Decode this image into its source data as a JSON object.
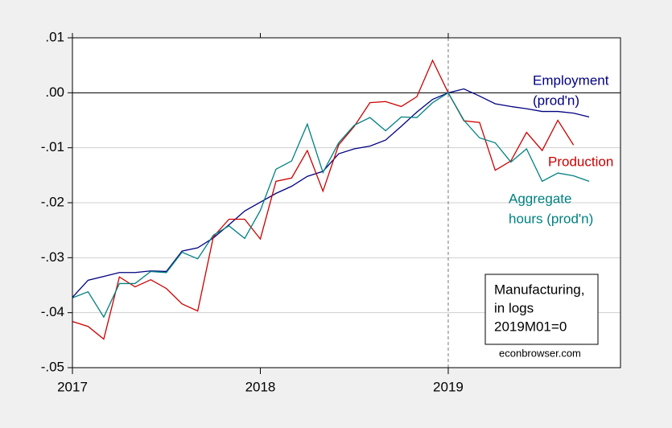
{
  "chart_data": {
    "type": "line",
    "x": [
      2017,
      2017.0833,
      2017.1667,
      2017.25,
      2017.3333,
      2017.4167,
      2017.5,
      2017.5833,
      2017.6667,
      2017.75,
      2017.8333,
      2017.9167,
      2018,
      2018.0833,
      2018.1667,
      2018.25,
      2018.3333,
      2018.4167,
      2018.5,
      2018.5833,
      2018.6667,
      2018.75,
      2018.8333,
      2018.9167,
      2019,
      2019.0833,
      2019.1667,
      2019.25,
      2019.3333,
      2019.4167,
      2019.5,
      2019.5833,
      2019.6667,
      2019.75
    ],
    "series": [
      {
        "name": [
          "Employment",
          "(prod'n)"
        ],
        "color": "#000080",
        "values": [
          -0.0372,
          -0.0341,
          -0.0334,
          -0.0327,
          -0.0327,
          -0.0324,
          -0.0325,
          -0.0288,
          -0.0282,
          -0.0264,
          -0.024,
          -0.0215,
          -0.0199,
          -0.0183,
          -0.017,
          -0.0152,
          -0.0143,
          -0.0111,
          -0.0102,
          -0.0097,
          -0.0086,
          -0.0061,
          -0.0035,
          -0.0012,
          0,
          0.0007,
          -0.0006,
          -0.002,
          -0.0025,
          -0.0029,
          -0.0034,
          -0.0034,
          -0.0037,
          -0.0044
        ]
      },
      {
        "name": [
          "Production"
        ],
        "color": "#cc0000",
        "values": [
          -0.0416,
          -0.0425,
          -0.0448,
          -0.0335,
          -0.0353,
          -0.034,
          -0.0356,
          -0.0384,
          -0.0397,
          -0.0262,
          -0.023,
          -0.023,
          -0.0266,
          -0.0161,
          -0.0155,
          -0.0105,
          -0.0179,
          -0.0095,
          -0.0061,
          -0.0018,
          -0.0016,
          -0.0025,
          -0.0007,
          0.0059,
          0,
          -0.0051,
          -0.0054,
          -0.0141,
          -0.0124,
          -0.0072,
          -0.0105,
          -0.005,
          -0.0095,
          null
        ]
      },
      {
        "name": [
          "Aggregate",
          "hours (prod'n)"
        ],
        "color": "#008080",
        "values": [
          -0.0373,
          -0.0362,
          -0.0408,
          -0.0347,
          -0.0347,
          -0.0325,
          -0.0327,
          -0.029,
          -0.0302,
          -0.0259,
          -0.0242,
          -0.0265,
          -0.0214,
          -0.0139,
          -0.0124,
          -0.0057,
          -0.0145,
          -0.0091,
          -0.0059,
          -0.0045,
          -0.0069,
          -0.0044,
          -0.0045,
          -0.0018,
          0,
          -0.005,
          -0.0082,
          -0.0091,
          -0.0126,
          -0.0102,
          -0.0161,
          -0.0146,
          -0.0151,
          -0.0161
        ]
      }
    ],
    "xlim": [
      2017,
      2019.9167
    ],
    "xticks": [
      2017,
      2018,
      2019
    ],
    "ylim": [
      -0.05,
      0.01
    ],
    "yticks": [
      {
        "value": -0.05,
        "label": "-.05"
      },
      {
        "value": -0.04,
        "label": "-.04"
      },
      {
        "value": -0.03,
        "label": "-.03"
      },
      {
        "value": -0.02,
        "label": "-.02"
      },
      {
        "value": -0.01,
        "label": "-.01"
      },
      {
        "value": 0,
        "label": ".00"
      },
      {
        "value": 0.01,
        "label": ".01"
      }
    ],
    "grid": true,
    "hline": 0,
    "vline": 2019,
    "note": [
      "Manufacturing,",
      "in logs",
      "2019M01=0"
    ],
    "source": "econbrowser.com"
  }
}
